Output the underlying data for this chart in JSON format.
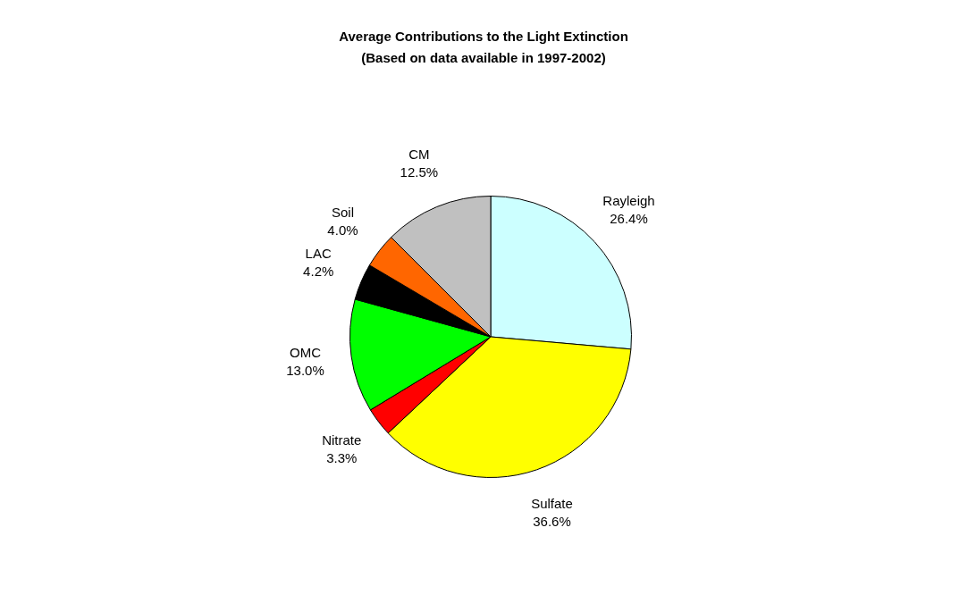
{
  "chart_data": {
    "type": "pie",
    "title": "Average Contributions to the Light Extinction",
    "subtitle": "(Based on data available in 1997-2002)",
    "categories": [
      "Rayleigh",
      "Sulfate",
      "Nitrate",
      "OMC",
      "LAC",
      "Soil",
      "CM"
    ],
    "values": [
      26.4,
      36.6,
      3.3,
      13.0,
      4.2,
      4.0,
      12.5
    ],
    "value_labels": [
      "26.4%",
      "36.6%",
      "3.3%",
      "13.0%",
      "4.2%",
      "4.0%",
      "12.5%"
    ],
    "colors": [
      "#ccffff",
      "#ffff00",
      "#ff0000",
      "#00ff00",
      "#000000",
      "#ff6600",
      "#c0c0c0"
    ],
    "legend": false
  }
}
